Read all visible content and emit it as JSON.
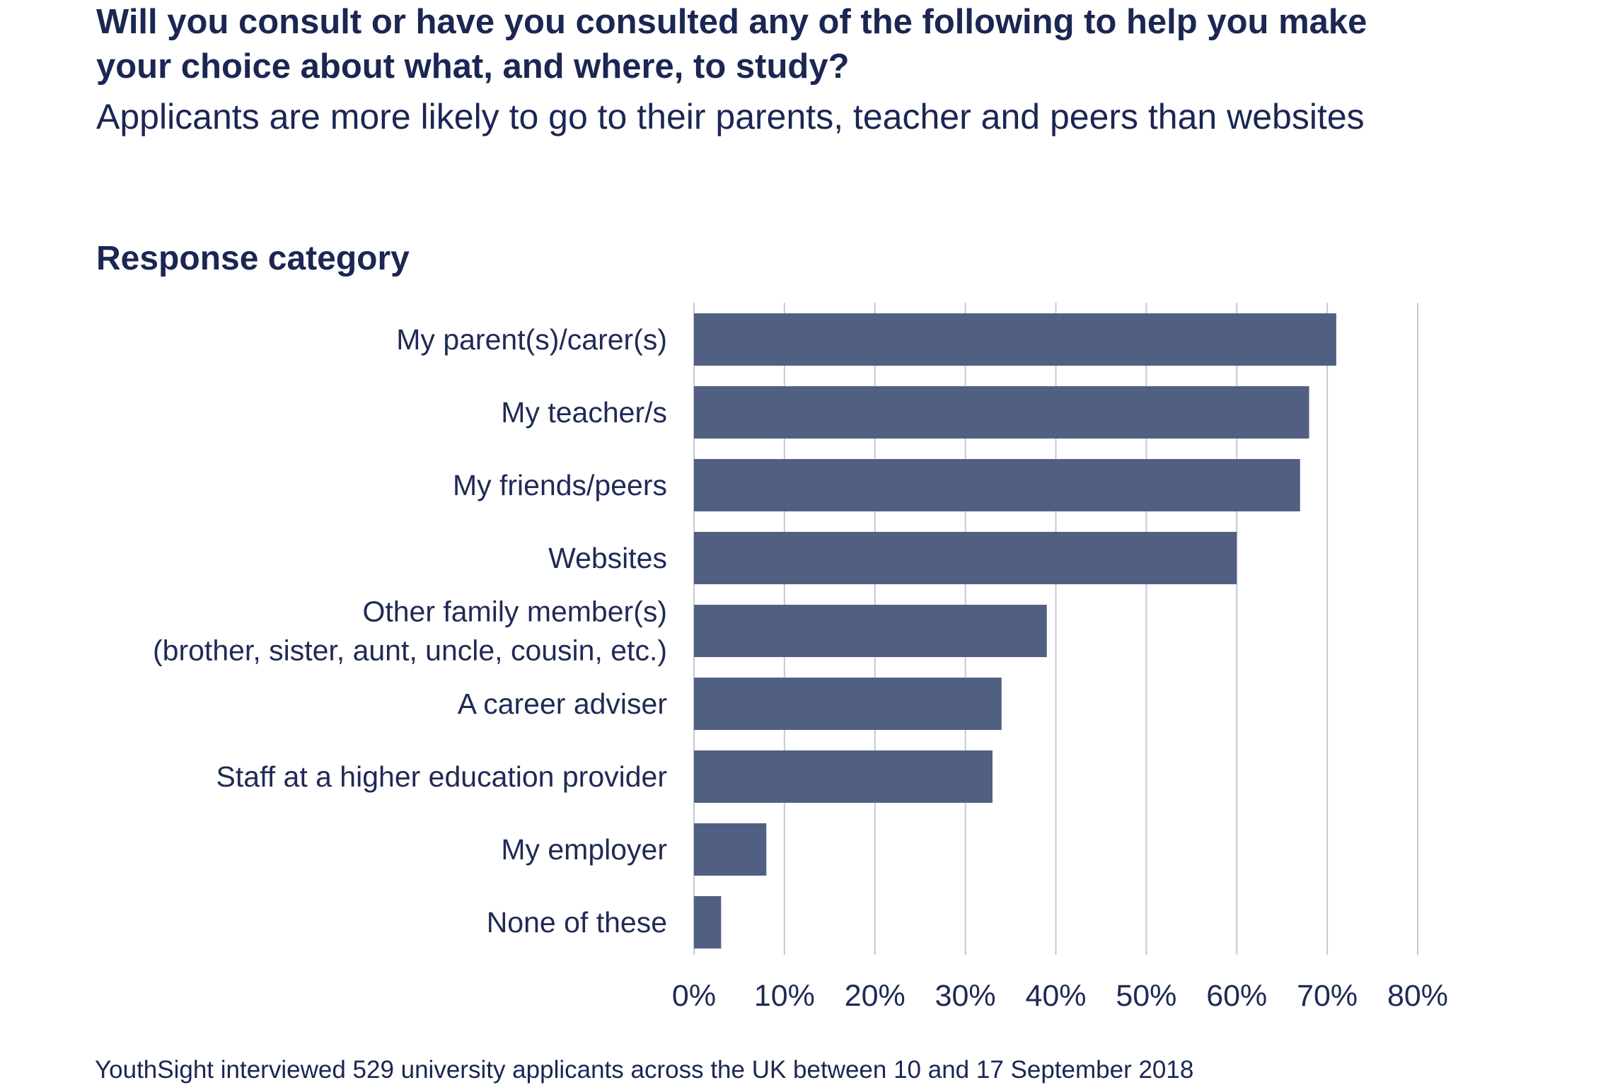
{
  "chart_data": {
    "type": "bar",
    "orientation": "horizontal",
    "title": "Will you consult or have you consulted any of the following to help you make your choice about what, and where, to study?",
    "subtitle": "Applicants are more likely to go to their parents, teacher and peers than websites",
    "ylabel": "Response category",
    "xlabel": "",
    "categories": [
      [
        "My parent(s)/carer(s)"
      ],
      [
        "My teacher/s"
      ],
      [
        "My friends/peers"
      ],
      [
        "Websites"
      ],
      [
        "Other family member(s)",
        "(brother, sister, aunt, uncle, cousin, etc.)"
      ],
      [
        "A career adviser"
      ],
      [
        "Staff at a higher education provider"
      ],
      [
        "My employer"
      ],
      [
        "None of these"
      ]
    ],
    "values": [
      71,
      68,
      67,
      60,
      39,
      34,
      33,
      8,
      3
    ],
    "xlim": [
      0,
      80
    ],
    "xticks": [
      0,
      10,
      20,
      30,
      40,
      50,
      60,
      70,
      80
    ],
    "xtick_labels": [
      "0%",
      "10%",
      "20%",
      "30%",
      "40%",
      "50%",
      "60%",
      "70%",
      "80%"
    ],
    "grid": "vertical",
    "legend": "none",
    "colors": {
      "bar": "#515f82",
      "grid": "#c4c8d8",
      "text": "#1f2a55"
    },
    "footnote": "YouthSight interviewed 529 university applicants across the UK between 10 and 17 September 2018"
  }
}
